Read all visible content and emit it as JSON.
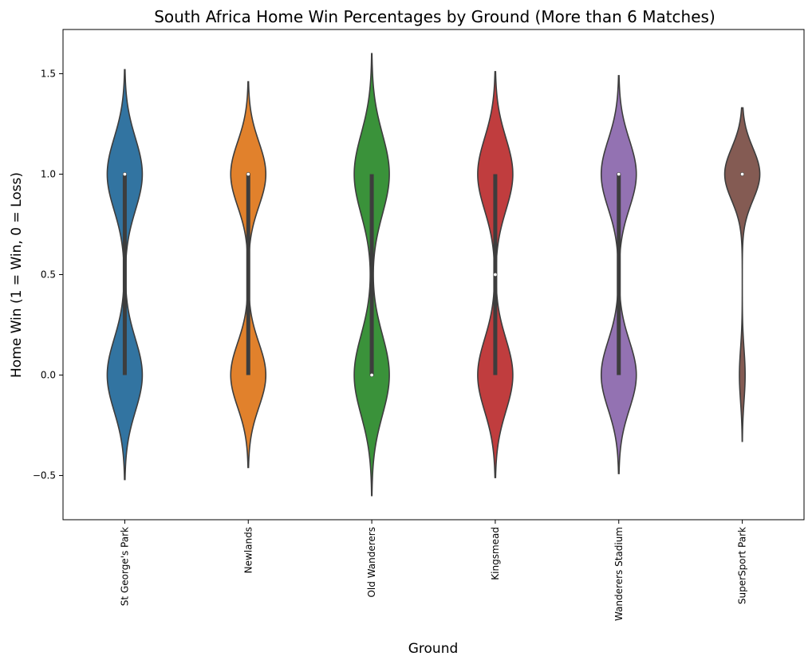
{
  "chart_data": {
    "type": "violin",
    "title": "South Africa Home Win Percentages by Ground (More than 6 Matches)",
    "xlabel": "Ground",
    "ylabel": "Home Win (1 = Win, 0 = Loss)",
    "ylim": [
      -0.72,
      1.72
    ],
    "yticks": [
      -0.5,
      0.0,
      0.5,
      1.0,
      1.5
    ],
    "ytick_labels": [
      "−0.5",
      "0.0",
      "0.5",
      "1.0",
      "1.5"
    ],
    "grid": false,
    "categories": [
      "St George's Park",
      "Newlands",
      "Old Wanderers",
      "Kingsmead",
      "Wanderers Stadium",
      "SuperSport Park"
    ],
    "colors": [
      "#3274a1",
      "#e1812c",
      "#3a923a",
      "#c03d3e",
      "#9372b2",
      "#845b53"
    ],
    "violins": [
      {
        "min": -0.52,
        "max": 1.52,
        "q1": 0.0,
        "median": 1.0,
        "q3": 1.0,
        "win_share": 0.5,
        "spread": 0.18
      },
      {
        "min": -0.46,
        "max": 1.46,
        "q1": 0.0,
        "median": 1.0,
        "q3": 1.0,
        "win_share": 0.5,
        "spread": 0.16
      },
      {
        "min": -0.6,
        "max": 1.6,
        "q1": 0.0,
        "median": 0.0,
        "q3": 1.0,
        "win_share": 0.5,
        "spread": 0.2
      },
      {
        "min": -0.51,
        "max": 1.51,
        "q1": 0.0,
        "median": 0.5,
        "q3": 1.0,
        "win_share": 0.5,
        "spread": 0.18
      },
      {
        "min": -0.49,
        "max": 1.49,
        "q1": 0.0,
        "median": 1.0,
        "q3": 1.0,
        "win_share": 0.5,
        "spread": 0.17
      },
      {
        "min": -0.33,
        "max": 1.33,
        "q1": 1.0,
        "median": 1.0,
        "q3": 1.0,
        "win_share": 0.86,
        "spread": 0.13
      }
    ]
  }
}
